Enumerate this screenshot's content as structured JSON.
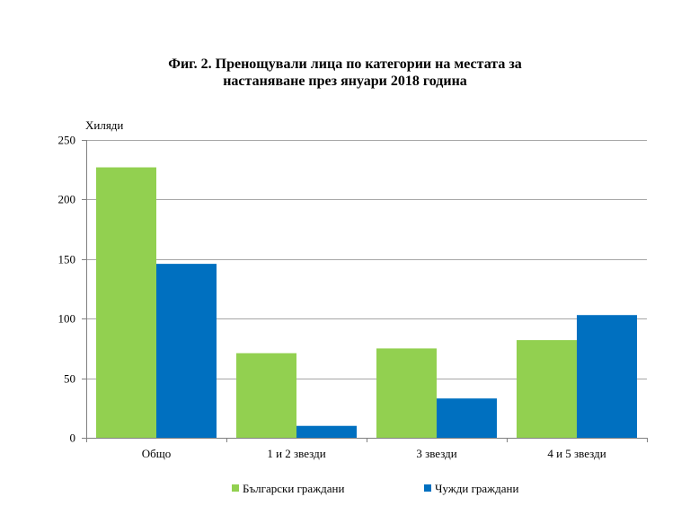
{
  "chart_data": {
    "type": "bar",
    "title": [
      "Фиг. 2. Пренощували лица по категории на местата за",
      "настаняване през януари 2018 година"
    ],
    "ylabel": "Хиляди",
    "xlabel": "",
    "categories": [
      "Общо",
      "1 и 2 звезди",
      "3 звезди",
      "4 и 5 звезди"
    ],
    "series": [
      {
        "name": "Български граждани",
        "color": "#92d050",
        "values": [
          227,
          71,
          75,
          82
        ]
      },
      {
        "name": "Чужди граждани",
        "color": "#0070c0",
        "values": [
          146,
          10,
          33,
          103
        ]
      }
    ],
    "ylim": [
      0,
      250
    ],
    "yticks": [
      0,
      50,
      100,
      150,
      200,
      250
    ],
    "grid": true,
    "legend": "bottom"
  }
}
